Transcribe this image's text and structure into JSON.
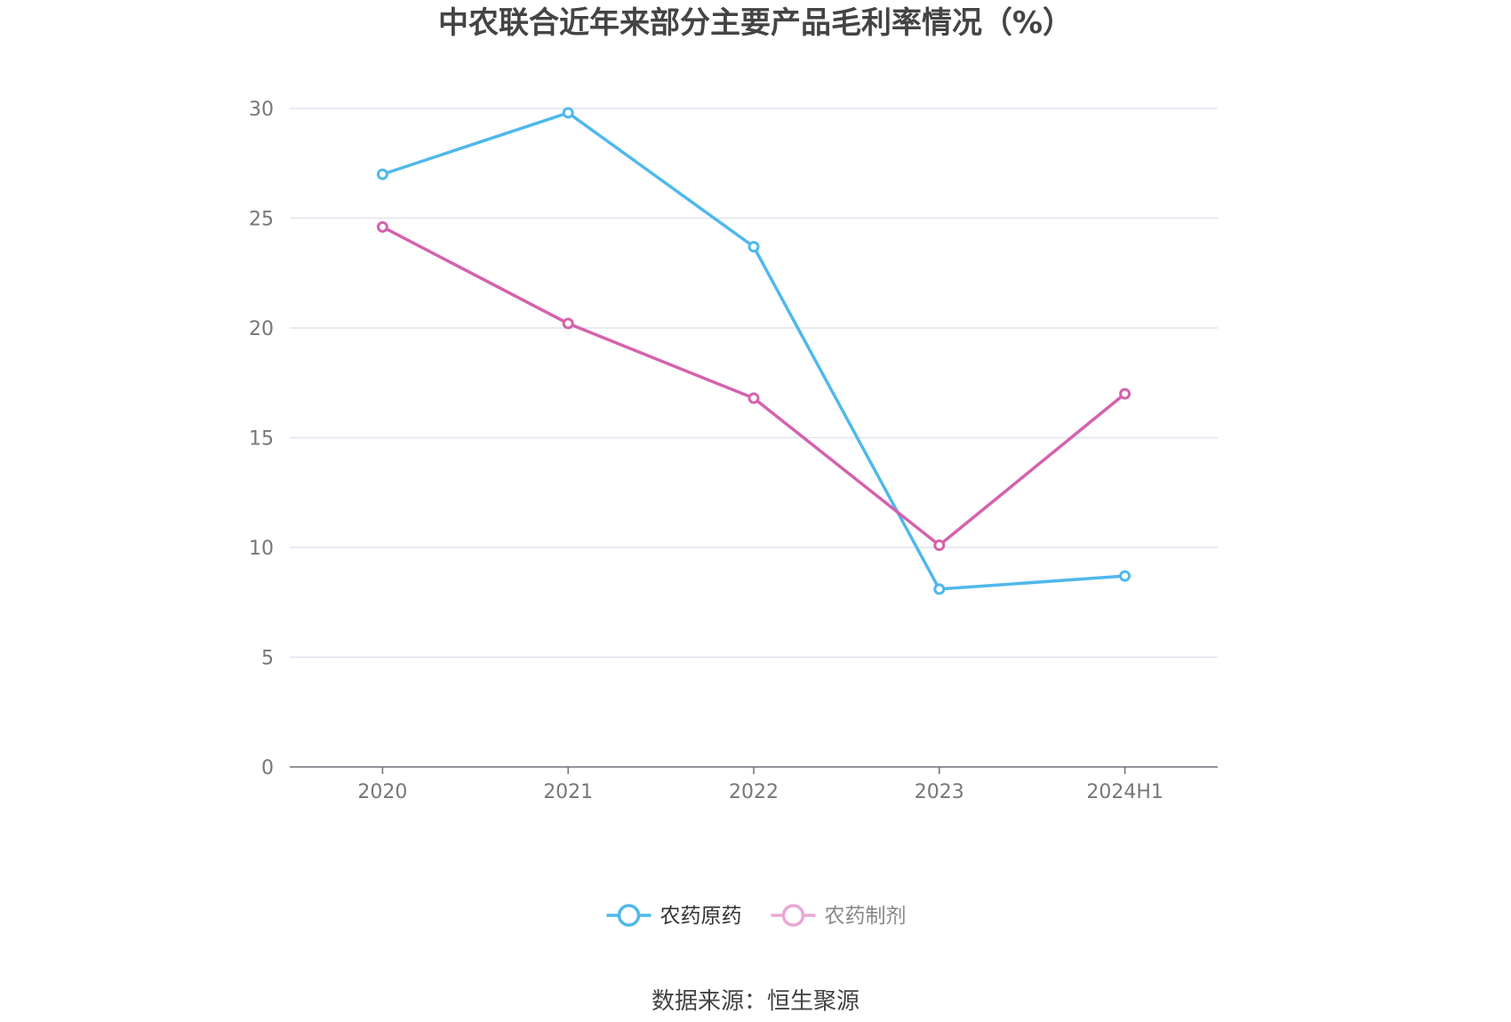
{
  "chart_data": {
    "type": "line",
    "title": "中农联合近年来部分主要产品毛利率情况（%）",
    "categories": [
      "2020",
      "2021",
      "2022",
      "2023",
      "2024H1"
    ],
    "ylim": [
      0,
      30
    ],
    "yticks": [
      "0",
      "5",
      "10",
      "15",
      "20",
      "25",
      "30"
    ],
    "grid": true,
    "legend_position": "bottom-center",
    "series": [
      {
        "name": "农药原药",
        "color": "#4fb8ec",
        "values": [
          27.0,
          29.8,
          23.7,
          8.1,
          8.7
        ]
      },
      {
        "name": "农药制剂",
        "color": "#d462ae",
        "values": [
          24.6,
          20.2,
          16.8,
          10.1,
          17.0
        ]
      }
    ],
    "source": "数据来源：恒生聚源"
  }
}
